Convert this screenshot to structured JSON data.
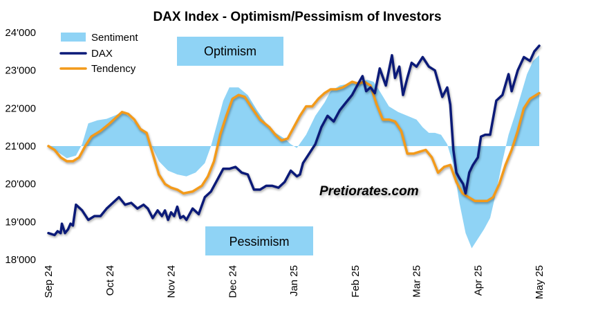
{
  "chart_data": {
    "type": "line",
    "title": "DAX Index - Optimism/Pessimism of Investors",
    "ylim": [
      18000,
      24000
    ],
    "y_ticks": [
      {
        "value": 18000,
        "label": "18'000"
      },
      {
        "value": 19000,
        "label": "19'000"
      },
      {
        "value": 20000,
        "label": "20'000"
      },
      {
        "value": 21000,
        "label": "21'000"
      },
      {
        "value": 22000,
        "label": "22'000"
      },
      {
        "value": 23000,
        "label": "23'000"
      },
      {
        "value": 24000,
        "label": "24'000"
      }
    ],
    "baseline": 21000,
    "xlim": [
      0,
      8
    ],
    "x_ticks": [
      {
        "value": 0,
        "label": "Sep 24"
      },
      {
        "value": 1,
        "label": "Oct 24"
      },
      {
        "value": 2,
        "label": "Nov 24"
      },
      {
        "value": 3,
        "label": "Dec 24"
      },
      {
        "value": 4,
        "label": "Jan 25"
      },
      {
        "value": 5,
        "label": "Feb 25"
      },
      {
        "value": 6,
        "label": "Mar 25"
      },
      {
        "value": 7,
        "label": "Apr 25"
      },
      {
        "value": 8,
        "label": "May 25"
      }
    ],
    "legend": [
      {
        "name": "Sentiment",
        "color": "#8fd3f5",
        "kind": "area"
      },
      {
        "name": "DAX",
        "color": "#0b1a78",
        "kind": "line"
      },
      {
        "name": "Tendency",
        "color": "#f39a1a",
        "kind": "line"
      }
    ],
    "annotations": {
      "optimism": "Optimism",
      "pessimism": "Pessimism",
      "brand": "Pretiorates.com"
    },
    "series": [
      {
        "name": "Sentiment",
        "color": "#8fd3f5",
        "points": [
          [
            0.0,
            21000
          ],
          [
            0.15,
            20850
          ],
          [
            0.3,
            20680
          ],
          [
            0.45,
            20750
          ],
          [
            0.55,
            21050
          ],
          [
            0.65,
            21600
          ],
          [
            0.8,
            21680
          ],
          [
            0.95,
            21720
          ],
          [
            1.1,
            21820
          ],
          [
            1.2,
            21900
          ],
          [
            1.3,
            21800
          ],
          [
            1.45,
            21550
          ],
          [
            1.6,
            21300
          ],
          [
            1.7,
            20950
          ],
          [
            1.8,
            20600
          ],
          [
            1.95,
            20350
          ],
          [
            2.1,
            20250
          ],
          [
            2.25,
            20200
          ],
          [
            2.4,
            20300
          ],
          [
            2.55,
            20550
          ],
          [
            2.65,
            21000
          ],
          [
            2.75,
            21600
          ],
          [
            2.85,
            22200
          ],
          [
            2.95,
            22550
          ],
          [
            3.1,
            22550
          ],
          [
            3.25,
            22350
          ],
          [
            3.4,
            21950
          ],
          [
            3.55,
            21600
          ],
          [
            3.7,
            21350
          ],
          [
            3.85,
            21200
          ],
          [
            3.95,
            21050
          ],
          [
            4.05,
            20950
          ],
          [
            4.2,
            21300
          ],
          [
            4.35,
            21800
          ],
          [
            4.5,
            22150
          ],
          [
            4.6,
            22450
          ],
          [
            4.75,
            22600
          ],
          [
            4.9,
            22650
          ],
          [
            5.05,
            22700
          ],
          [
            5.2,
            22750
          ],
          [
            5.3,
            22700
          ],
          [
            5.4,
            22450
          ],
          [
            5.55,
            22050
          ],
          [
            5.7,
            21900
          ],
          [
            5.85,
            21800
          ],
          [
            6.0,
            21700
          ],
          [
            6.1,
            21500
          ],
          [
            6.2,
            21350
          ],
          [
            6.3,
            21350
          ],
          [
            6.4,
            21300
          ],
          [
            6.5,
            21050
          ],
          [
            6.6,
            20500
          ],
          [
            6.7,
            19500
          ],
          [
            6.8,
            18700
          ],
          [
            6.9,
            18300
          ],
          [
            7.0,
            18550
          ],
          [
            7.1,
            18800
          ],
          [
            7.2,
            19100
          ],
          [
            7.3,
            19800
          ],
          [
            7.4,
            20600
          ],
          [
            7.5,
            21300
          ],
          [
            7.6,
            21800
          ],
          [
            7.7,
            22350
          ],
          [
            7.8,
            22900
          ],
          [
            7.9,
            23250
          ],
          [
            8.0,
            23400
          ]
        ]
      },
      {
        "name": "DAX",
        "color": "#0b1a78",
        "points": [
          [
            0.0,
            18700
          ],
          [
            0.1,
            18650
          ],
          [
            0.15,
            18750
          ],
          [
            0.2,
            18700
          ],
          [
            0.22,
            18950
          ],
          [
            0.27,
            18700
          ],
          [
            0.32,
            18800
          ],
          [
            0.36,
            18950
          ],
          [
            0.4,
            18900
          ],
          [
            0.45,
            19450
          ],
          [
            0.55,
            19300
          ],
          [
            0.65,
            19050
          ],
          [
            0.75,
            19150
          ],
          [
            0.85,
            19150
          ],
          [
            0.95,
            19350
          ],
          [
            1.05,
            19500
          ],
          [
            1.15,
            19650
          ],
          [
            1.25,
            19450
          ],
          [
            1.35,
            19500
          ],
          [
            1.45,
            19350
          ],
          [
            1.55,
            19450
          ],
          [
            1.62,
            19350
          ],
          [
            1.7,
            19100
          ],
          [
            1.78,
            19300
          ],
          [
            1.85,
            19150
          ],
          [
            1.9,
            19300
          ],
          [
            1.95,
            19050
          ],
          [
            2.0,
            19250
          ],
          [
            2.05,
            19150
          ],
          [
            2.1,
            19400
          ],
          [
            2.15,
            19100
          ],
          [
            2.2,
            19150
          ],
          [
            2.25,
            19050
          ],
          [
            2.35,
            19350
          ],
          [
            2.45,
            19200
          ],
          [
            2.55,
            19650
          ],
          [
            2.65,
            19800
          ],
          [
            2.75,
            20100
          ],
          [
            2.85,
            20400
          ],
          [
            2.95,
            20400
          ],
          [
            3.05,
            20450
          ],
          [
            3.15,
            20300
          ],
          [
            3.25,
            20250
          ],
          [
            3.35,
            19850
          ],
          [
            3.45,
            19850
          ],
          [
            3.55,
            19950
          ],
          [
            3.65,
            19950
          ],
          [
            3.75,
            19900
          ],
          [
            3.85,
            20050
          ],
          [
            3.95,
            20350
          ],
          [
            4.05,
            20200
          ],
          [
            4.1,
            20250
          ],
          [
            4.15,
            20550
          ],
          [
            4.25,
            20800
          ],
          [
            4.35,
            21050
          ],
          [
            4.45,
            21500
          ],
          [
            4.55,
            21800
          ],
          [
            4.65,
            21650
          ],
          [
            4.75,
            21950
          ],
          [
            4.85,
            22150
          ],
          [
            4.95,
            22350
          ],
          [
            5.05,
            22650
          ],
          [
            5.12,
            22850
          ],
          [
            5.18,
            22450
          ],
          [
            5.25,
            22550
          ],
          [
            5.32,
            22400
          ],
          [
            5.4,
            23050
          ],
          [
            5.5,
            22600
          ],
          [
            5.6,
            23400
          ],
          [
            5.65,
            22800
          ],
          [
            5.72,
            23100
          ],
          [
            5.78,
            22350
          ],
          [
            5.85,
            22800
          ],
          [
            5.92,
            23200
          ],
          [
            6.0,
            23100
          ],
          [
            6.1,
            23350
          ],
          [
            6.2,
            23100
          ],
          [
            6.3,
            23000
          ],
          [
            6.42,
            22300
          ],
          [
            6.5,
            22550
          ],
          [
            6.55,
            22100
          ],
          [
            6.6,
            20900
          ],
          [
            6.65,
            20300
          ],
          [
            6.7,
            20150
          ],
          [
            6.76,
            20000
          ],
          [
            6.8,
            19750
          ],
          [
            6.86,
            20300
          ],
          [
            6.92,
            20500
          ],
          [
            7.0,
            20700
          ],
          [
            7.05,
            21250
          ],
          [
            7.12,
            21300
          ],
          [
            7.2,
            21300
          ],
          [
            7.3,
            22200
          ],
          [
            7.4,
            22350
          ],
          [
            7.5,
            22900
          ],
          [
            7.55,
            22450
          ],
          [
            7.65,
            23000
          ],
          [
            7.75,
            23350
          ],
          [
            7.85,
            23250
          ],
          [
            7.92,
            23500
          ],
          [
            8.0,
            23650
          ]
        ]
      },
      {
        "name": "Tendency",
        "color": "#f39a1a",
        "points": [
          [
            0.0,
            21000
          ],
          [
            0.1,
            20900
          ],
          [
            0.2,
            20700
          ],
          [
            0.3,
            20600
          ],
          [
            0.4,
            20600
          ],
          [
            0.5,
            20700
          ],
          [
            0.6,
            21000
          ],
          [
            0.7,
            21250
          ],
          [
            0.85,
            21400
          ],
          [
            1.0,
            21600
          ],
          [
            1.1,
            21750
          ],
          [
            1.2,
            21900
          ],
          [
            1.3,
            21850
          ],
          [
            1.4,
            21700
          ],
          [
            1.5,
            21450
          ],
          [
            1.6,
            21350
          ],
          [
            1.7,
            20800
          ],
          [
            1.8,
            20250
          ],
          [
            1.9,
            20000
          ],
          [
            2.0,
            19900
          ],
          [
            2.1,
            19850
          ],
          [
            2.2,
            19750
          ],
          [
            2.35,
            19800
          ],
          [
            2.5,
            19950
          ],
          [
            2.6,
            20200
          ],
          [
            2.7,
            20600
          ],
          [
            2.8,
            21300
          ],
          [
            2.9,
            21800
          ],
          [
            3.0,
            22250
          ],
          [
            3.1,
            22350
          ],
          [
            3.2,
            22300
          ],
          [
            3.3,
            22050
          ],
          [
            3.45,
            21700
          ],
          [
            3.6,
            21500
          ],
          [
            3.7,
            21300
          ],
          [
            3.8,
            21150
          ],
          [
            3.9,
            21200
          ],
          [
            4.0,
            21500
          ],
          [
            4.1,
            21800
          ],
          [
            4.2,
            22050
          ],
          [
            4.3,
            22050
          ],
          [
            4.4,
            22250
          ],
          [
            4.5,
            22400
          ],
          [
            4.6,
            22500
          ],
          [
            4.7,
            22500
          ],
          [
            4.8,
            22550
          ],
          [
            4.95,
            22700
          ],
          [
            5.05,
            22650
          ],
          [
            5.15,
            22700
          ],
          [
            5.25,
            22600
          ],
          [
            5.35,
            22100
          ],
          [
            5.45,
            21700
          ],
          [
            5.55,
            21700
          ],
          [
            5.65,
            21650
          ],
          [
            5.75,
            21400
          ],
          [
            5.85,
            20800
          ],
          [
            5.95,
            20800
          ],
          [
            6.05,
            20850
          ],
          [
            6.15,
            20900
          ],
          [
            6.25,
            20700
          ],
          [
            6.35,
            20300
          ],
          [
            6.45,
            20450
          ],
          [
            6.55,
            20500
          ],
          [
            6.65,
            20050
          ],
          [
            6.75,
            19750
          ],
          [
            6.85,
            19650
          ],
          [
            6.95,
            19550
          ],
          [
            7.05,
            19550
          ],
          [
            7.15,
            19550
          ],
          [
            7.25,
            19650
          ],
          [
            7.35,
            20000
          ],
          [
            7.45,
            20500
          ],
          [
            7.55,
            20900
          ],
          [
            7.65,
            21400
          ],
          [
            7.75,
            22000
          ],
          [
            7.85,
            22250
          ],
          [
            7.95,
            22350
          ],
          [
            8.0,
            22400
          ]
        ]
      }
    ]
  }
}
